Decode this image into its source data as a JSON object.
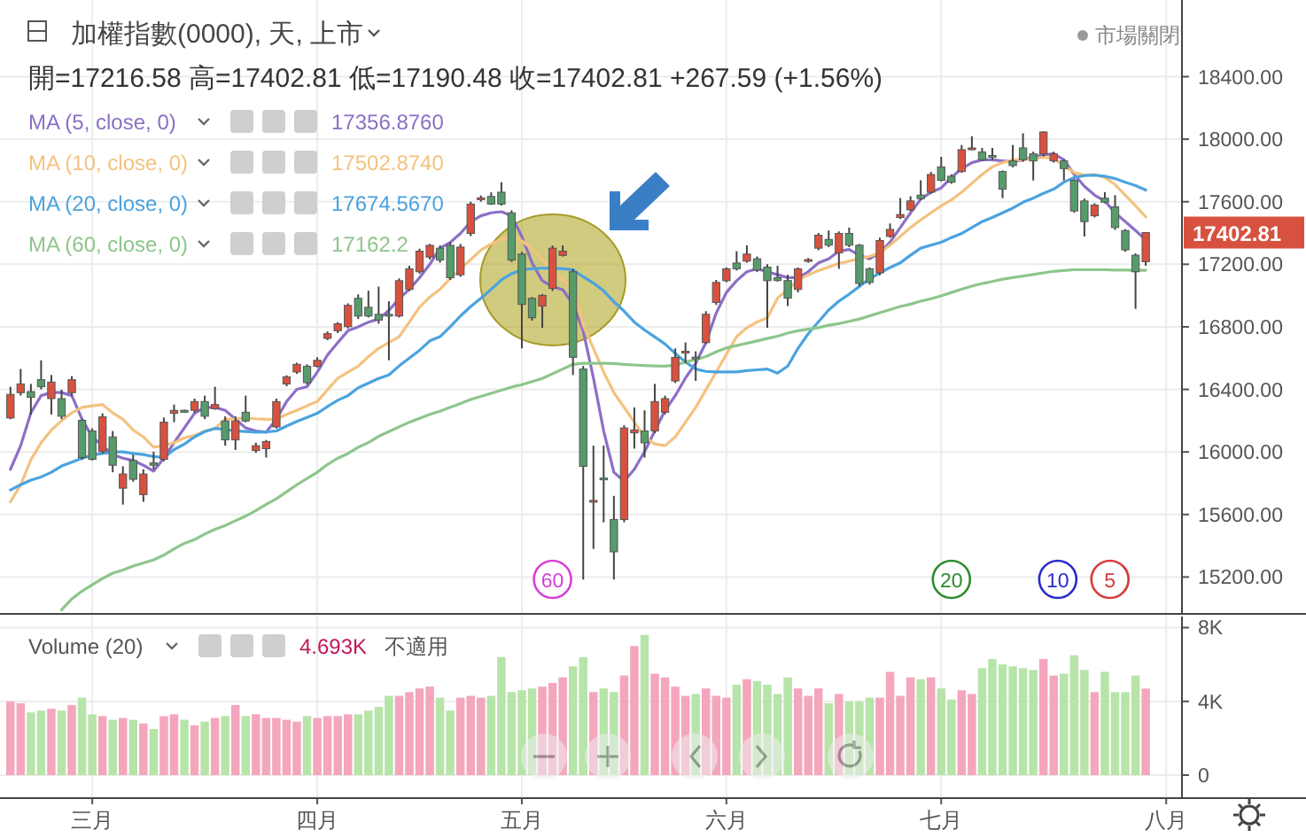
{
  "chart_data": [
    {
      "type": "candlestick",
      "title": "加權指數(0000), 天, 上市",
      "subtitle": "開=17216.58  高=17402.81  低=17190.48  收=17402.81  +267.59 (+1.56%)",
      "categories": [
        null,
        null,
        null,
        null,
        null,
        null,
        null,
        null,
        null,
        null,
        null,
        null,
        null,
        null,
        null,
        null,
        null,
        null,
        null,
        null,
        null,
        null,
        null,
        null,
        null,
        null,
        null,
        null,
        null,
        null,
        null,
        null,
        null,
        null,
        null,
        null,
        null,
        null,
        null,
        null,
        null,
        null,
        null,
        null,
        null,
        null,
        null,
        null,
        null,
        null,
        null,
        null,
        null,
        null,
        null,
        null,
        null,
        null,
        null,
        null,
        null,
        null,
        null,
        null,
        null,
        null,
        null,
        null,
        null,
        null,
        null,
        null,
        null,
        null,
        null,
        null,
        null,
        null,
        null,
        null,
        null,
        null,
        null,
        null,
        null,
        null,
        null,
        null,
        null,
        null,
        null,
        null,
        null,
        null,
        null,
        null,
        null,
        null,
        null,
        null,
        null,
        null,
        null,
        null,
        null,
        null,
        null,
        null,
        null,
        null,
        null,
        null,
        null,
        null
      ],
      "ohlc": [
        [
          16217,
          16417,
          16209,
          16368
        ],
        [
          16379,
          16530,
          16360,
          16435
        ],
        [
          16386,
          16435,
          16239,
          16349
        ],
        [
          16462,
          16586,
          16400,
          16417
        ],
        [
          16341,
          16492,
          16239,
          16447
        ],
        [
          16341,
          16398,
          16210,
          16228
        ],
        [
          16379,
          16485,
          16360,
          16462
        ],
        [
          16202,
          16209,
          15950,
          15964
        ],
        [
          16134,
          16150,
          15945,
          15953
        ],
        [
          16002,
          16247,
          15990,
          16224
        ],
        [
          16096,
          16134,
          15870,
          15915
        ],
        [
          15768,
          15908,
          15663,
          15859
        ],
        [
          15945,
          15983,
          15810,
          15825
        ],
        [
          15727,
          15889,
          15681,
          15859
        ],
        [
          15930,
          16002,
          15889,
          15915
        ],
        [
          15953,
          16220,
          15940,
          16190
        ],
        [
          16247,
          16303,
          16190,
          16266
        ],
        [
          16266,
          16270,
          16250,
          16254
        ],
        [
          16266,
          16341,
          16250,
          16322
        ],
        [
          16322,
          16360,
          16210,
          16228
        ],
        [
          16277,
          16417,
          16270,
          16303
        ],
        [
          16198,
          16228,
          16040,
          16077
        ],
        [
          16077,
          16228,
          16013,
          16198
        ],
        [
          16254,
          16360,
          16190,
          16198
        ],
        [
          16009,
          16059,
          15994,
          16040
        ],
        [
          16021,
          16077,
          15964,
          16066
        ],
        [
          16160,
          16341,
          16150,
          16322
        ],
        [
          16435,
          16490,
          16420,
          16480
        ],
        [
          16511,
          16570,
          16500,
          16560
        ],
        [
          16548,
          16560,
          16430,
          16443
        ],
        [
          16548,
          16605,
          16540,
          16586
        ],
        [
          16726,
          16770,
          16715,
          16756
        ],
        [
          16775,
          16830,
          16760,
          16820
        ],
        [
          16801,
          16950,
          16790,
          16937
        ],
        [
          16982,
          17008,
          16850,
          16869
        ],
        [
          16925,
          17031,
          16860,
          16869
        ],
        [
          16880,
          17057,
          16820,
          16843
        ],
        [
          16880,
          16963,
          16586,
          16869
        ],
        [
          16869,
          17110,
          16860,
          17095
        ],
        [
          17039,
          17190,
          17030,
          17171
        ],
        [
          17152,
          17300,
          17140,
          17284
        ],
        [
          17246,
          17330,
          17230,
          17321
        ],
        [
          17303,
          17320,
          17210,
          17227
        ],
        [
          17321,
          17340,
          17100,
          17114
        ],
        [
          17133,
          17330,
          17120,
          17310
        ],
        [
          17397,
          17600,
          17380,
          17585
        ],
        [
          17613,
          17640,
          17600,
          17625
        ],
        [
          17634,
          17660,
          17580,
          17585
        ],
        [
          17661,
          17725,
          17575,
          17585
        ],
        [
          17529,
          17545,
          17215,
          17227
        ],
        [
          17265,
          17280,
          16662,
          16944
        ],
        [
          16982,
          16990,
          16840,
          16858
        ],
        [
          16933,
          17010,
          16794,
          17001
        ],
        [
          17046,
          17320,
          17030,
          17303
        ],
        [
          17257,
          17321,
          17250,
          17284
        ],
        [
          17152,
          17170,
          16492,
          16605
        ],
        [
          16530,
          16550,
          15184,
          15908
        ],
        [
          15689,
          16040,
          15380,
          15690
        ],
        [
          15833,
          16040,
          15550,
          15832
        ],
        [
          15568,
          15719,
          15184,
          15361
        ],
        [
          15568,
          16170,
          15550,
          16153
        ],
        [
          16122,
          16285,
          16021,
          16141
        ],
        [
          16134,
          16266,
          15964,
          16058
        ],
        [
          16134,
          16435,
          16120,
          16322
        ],
        [
          16254,
          16360,
          16240,
          16341
        ],
        [
          16454,
          16662,
          16440,
          16605
        ],
        [
          16643,
          16700,
          16567,
          16644
        ],
        [
          16606,
          16643,
          16454,
          16605
        ],
        [
          16699,
          16900,
          16690,
          16880
        ],
        [
          16956,
          17100,
          16940,
          17084
        ],
        [
          17095,
          17180,
          17085,
          17171
        ],
        [
          17208,
          17284,
          17160,
          17171
        ],
        [
          17220,
          17321,
          17210,
          17265
        ],
        [
          17235,
          17250,
          17150,
          17163
        ],
        [
          17182,
          17200,
          16794,
          17095
        ],
        [
          17114,
          17190,
          17090,
          17096
        ],
        [
          17096,
          17133,
          16933,
          16983
        ],
        [
          17039,
          17180,
          17020,
          17171
        ],
        [
          17227,
          17240,
          17210,
          17230
        ],
        [
          17303,
          17400,
          17290,
          17386
        ],
        [
          17359,
          17416,
          17310,
          17322
        ],
        [
          17273,
          17410,
          17171,
          17397
        ],
        [
          17397,
          17435,
          17310,
          17322
        ],
        [
          17322,
          17330,
          17060,
          17077
        ],
        [
          17171,
          17180,
          17070,
          17084
        ],
        [
          17145,
          17370,
          17130,
          17352
        ],
        [
          17378,
          17461,
          17370,
          17423
        ],
        [
          17499,
          17623,
          17490,
          17518
        ],
        [
          17548,
          17635,
          17540,
          17605
        ],
        [
          17642,
          17737,
          17610,
          17620
        ],
        [
          17661,
          17790,
          17650,
          17774
        ],
        [
          17823,
          17887,
          17730,
          17737
        ],
        [
          17763,
          17775,
          17715,
          17725
        ],
        [
          17793,
          17963,
          17785,
          17933
        ],
        [
          17943,
          18019,
          17930,
          17944
        ],
        [
          17918,
          17944,
          17860,
          17868
        ],
        [
          17896,
          17944,
          17868,
          17895
        ],
        [
          17793,
          17800,
          17623,
          17680
        ],
        [
          17861,
          17963,
          17820,
          17831
        ],
        [
          17944,
          18038,
          17855,
          17868
        ],
        [
          17906,
          17920,
          17736,
          17861
        ],
        [
          17906,
          18050,
          17890,
          18046
        ],
        [
          17861,
          17920,
          17850,
          17906
        ],
        [
          17861,
          17870,
          17736,
          17812
        ],
        [
          17737,
          17745,
          17530,
          17541
        ],
        [
          17605,
          17620,
          17378,
          17473
        ],
        [
          17510,
          17590,
          17500,
          17578
        ],
        [
          17623,
          17661,
          17590,
          17597
        ],
        [
          17567,
          17642,
          17420,
          17435
        ],
        [
          17416,
          17425,
          17280,
          17292
        ],
        [
          17258,
          17270,
          16915,
          17152
        ],
        [
          17216.58,
          17402.81,
          17190.48,
          17402.81
        ],
        null,
        null
      ],
      "colors": [
        "#d8513f",
        "#d8513f",
        "#569c6b",
        "#569c6b",
        "#d8513f",
        "#569c6b",
        "#d8513f",
        "#569c6b",
        "#569c6b",
        "#d8513f",
        "#569c6b",
        "#d8513f",
        "#569c6b",
        "#d8513f",
        "#569c6b",
        "#d8513f",
        "#d8513f",
        "#569c6b",
        "#d8513f",
        "#569c6b",
        "#d8513f",
        "#569c6b",
        "#d8513f",
        "#569c6b",
        "#d8513f",
        "#d8513f",
        "#d8513f",
        "#d8513f",
        "#d8513f",
        "#569c6b",
        "#d8513f",
        "#d8513f",
        "#d8513f",
        "#d8513f",
        "#569c6b",
        "#569c6b",
        "#569c6b",
        "#569c6b",
        "#d8513f",
        "#d8513f",
        "#d8513f",
        "#d8513f",
        "#569c6b",
        "#569c6b",
        "#d8513f",
        "#d8513f",
        "#d8513f",
        "#569c6b",
        "#569c6b",
        "#569c6b",
        "#569c6b",
        "#569c6b",
        "#d8513f",
        "#d8513f",
        "#d8513f",
        "#569c6b",
        "#569c6b",
        "#d8513f",
        "#569c6b",
        "#569c6b",
        "#d8513f",
        "#d8513f",
        "#569c6b",
        "#d8513f",
        "#d8513f",
        "#d8513f",
        "#d8513f",
        "#569c6b",
        "#d8513f",
        "#d8513f",
        "#d8513f",
        "#569c6b",
        "#d8513f",
        "#569c6b",
        "#569c6b",
        "#569c6b",
        "#569c6b",
        "#d8513f",
        "#d8513f",
        "#d8513f",
        "#569c6b",
        "#d8513f",
        "#569c6b",
        "#569c6b",
        "#569c6b",
        "#d8513f",
        "#d8513f",
        "#d8513f",
        "#d8513f",
        "#569c6b",
        "#d8513f",
        "#569c6b",
        "#569c6b",
        "#d8513f",
        "#d8513f",
        "#569c6b",
        "#569c6b",
        "#569c6b",
        "#569c6b",
        "#569c6b",
        "#569c6b",
        "#d8513f",
        "#d8513f",
        "#569c6b",
        "#569c6b",
        "#569c6b",
        "#d8513f",
        "#569c6b",
        "#569c6b",
        "#569c6b",
        "#569c6b",
        "#d8513f",
        null,
        null
      ],
      "series": [
        {
          "name": "MA (5, close, 0)",
          "type": "line",
          "color": "#8c6fc6",
          "values": [
            15889,
            16040,
            16250,
            16360,
            16380,
            16380,
            16360,
            16210,
            16096,
            16040,
            15983,
            15960,
            15945,
            15915,
            15877,
            15960,
            16059,
            16153,
            16247,
            16285,
            16285,
            16266,
            16210,
            16153,
            16134,
            16126,
            16209,
            16322,
            16400,
            16417,
            16510,
            16620,
            16699,
            16775,
            16800,
            16830,
            16850,
            16905,
            16980,
            17040,
            17114,
            17200,
            17303,
            17340,
            17397,
            17472,
            17510,
            17529,
            17536,
            17510,
            17378,
            17208,
            17095,
            17057,
            17038,
            16944,
            16775,
            16473,
            16134,
            15870,
            15813,
            15889,
            16002,
            16134,
            16266,
            16360,
            16473,
            16567,
            16699,
            16888,
            17020,
            17095,
            17152,
            17171,
            17152,
            17133,
            17115,
            17115,
            17152,
            17209,
            17235,
            17284,
            17295,
            17258,
            17235,
            17273,
            17341,
            17435,
            17529,
            17616,
            17661,
            17688,
            17755,
            17812,
            17850,
            17868,
            17868,
            17861,
            17857,
            17868,
            17887,
            17899,
            17906,
            17868,
            17774,
            17699,
            17642,
            17605,
            17529,
            17473,
            17416,
            17357,
            null,
            null
          ]
        },
        {
          "name": "MA (10, close, 0)",
          "type": "line",
          "color": "#f4c27f",
          "values": [
            15681,
            15790,
            15950,
            16059,
            16140,
            16200,
            16250,
            16285,
            16295,
            16303,
            16250,
            16209,
            16140,
            16096,
            16030,
            16040,
            16059,
            16090,
            16105,
            16134,
            16150,
            16209,
            16212,
            16217,
            16212,
            16209,
            16209,
            16240,
            16266,
            16295,
            16322,
            16398,
            16470,
            16510,
            16548,
            16610,
            16662,
            16700,
            16737,
            16830,
            16926,
            16990,
            17040,
            17110,
            17170,
            17230,
            17290,
            17330,
            17360,
            17380,
            17350,
            17300,
            17230,
            17160,
            17100,
            17057,
            16812,
            16662,
            16511,
            16379,
            16285,
            16190,
            16096,
            16051,
            16040,
            16096,
            16190,
            16285,
            16398,
            16511,
            16624,
            16737,
            16794,
            16831,
            16858,
            16983,
            17039,
            17096,
            17133,
            17160,
            17182,
            17205,
            17220,
            17235,
            17250,
            17273,
            17322,
            17378,
            17435,
            17484,
            17529,
            17574,
            17612,
            17661,
            17718,
            17774,
            17823,
            17850,
            17868,
            17868,
            17876,
            17884,
            17876,
            17831,
            17786,
            17770,
            17774,
            17755,
            17710,
            17642,
            17574,
            17503,
            null,
            null
          ]
        },
        {
          "name": "MA (20, close, 0)",
          "type": "line",
          "color": "#4aa3df",
          "values": [
            15757,
            15790,
            15820,
            15840,
            15870,
            15910,
            15935,
            15960,
            15980,
            15990,
            16000,
            16000,
            15990,
            15983,
            15970,
            15964,
            16015,
            16050,
            16096,
            16130,
            16150,
            16145,
            16134,
            16130,
            16126,
            16128,
            16134,
            16165,
            16195,
            16220,
            16247,
            16290,
            16330,
            16360,
            16410,
            16440,
            16470,
            16492,
            16550,
            16600,
            16650,
            16710,
            16737,
            16800,
            16869,
            16930,
            16982,
            17040,
            17100,
            17140,
            17165,
            17171,
            17175,
            17175,
            17171,
            17165,
            17120,
            17080,
            17030,
            16960,
            16900,
            16830,
            16780,
            16735,
            16690,
            16630,
            16575,
            16530,
            16515,
            16511,
            16511,
            16511,
            16520,
            16525,
            16530,
            16504,
            16549,
            16662,
            16756,
            16832,
            16907,
            16964,
            17009,
            17058,
            17107,
            17145,
            17179,
            17209,
            17258,
            17303,
            17322,
            17341,
            17371,
            17397,
            17435,
            17473,
            17499,
            17529,
            17559,
            17597,
            17623,
            17654,
            17680,
            17725,
            17755,
            17767,
            17770,
            17763,
            17748,
            17725,
            17703,
            17675,
            null,
            null
          ]
        },
        {
          "name": "MA (60, close, 0)",
          "type": "line",
          "color": "#8dc68b",
          "values": [
            null,
            null,
            null,
            null,
            null,
            14990,
            15060,
            15110,
            15150,
            15190,
            15225,
            15245,
            15270,
            15290,
            15310,
            15340,
            15380,
            15415,
            15440,
            15475,
            15505,
            15530,
            15560,
            15590,
            15625,
            15665,
            15700,
            15745,
            15790,
            15830,
            15870,
            15920,
            15960,
            15990,
            16030,
            16060,
            16100,
            16130,
            16160,
            16190,
            16215,
            16240,
            16260,
            16285,
            16310,
            16335,
            16355,
            16375,
            16395,
            16415,
            16430,
            16450,
            16470,
            16500,
            16530,
            16560,
            16567,
            16567,
            16567,
            16565,
            16560,
            16556,
            16552,
            16550,
            16548,
            16555,
            16575,
            16590,
            16610,
            16640,
            16665,
            16680,
            16695,
            16710,
            16725,
            16740,
            16760,
            16775,
            16785,
            16795,
            16810,
            16820,
            16835,
            16850,
            16870,
            16890,
            16910,
            16930,
            16945,
            16964,
            16980,
            16998,
            17020,
            17040,
            17060,
            17077,
            17090,
            17105,
            17115,
            17125,
            17135,
            17145,
            17155,
            17160,
            17165,
            17165,
            17165,
            17165,
            17163,
            17163,
            17162,
            17162,
            null,
            null
          ]
        }
      ],
      "ylim": [
        14970,
        18890
      ],
      "yticks": [
        {
          "value": 15200,
          "label": "15200.00"
        },
        {
          "value": 15600,
          "label": "15600.00"
        },
        {
          "value": 16000,
          "label": "16000.00"
        },
        {
          "value": 16400,
          "label": "16400.00"
        },
        {
          "value": 16800,
          "label": "16800.00"
        },
        {
          "value": 17200,
          "label": "17200.00"
        },
        {
          "value": 17600,
          "label": "17600.00"
        },
        {
          "value": 18000,
          "label": "18000.00"
        },
        {
          "value": 18400,
          "label": "18400.00"
        }
      ],
      "tick_labels": "y",
      "grid": true,
      "legend": "top left",
      "annotations": [
        "市場關閉",
        "17356.8760",
        "17502.8740",
        "17674.5670",
        "17162.2",
        "17402.81",
        "60",
        "20",
        "10",
        "5"
      ]
    },
    {
      "type": "bar",
      "title": "Volume (20)",
      "categories": [
        null,
        null,
        null,
        null,
        null,
        null,
        null,
        null,
        "三月",
        null,
        null,
        null,
        null,
        null,
        null,
        null,
        null,
        null,
        null,
        null,
        null,
        null,
        null,
        null,
        null,
        null,
        null,
        null,
        null,
        null,
        "四月",
        null,
        null,
        null,
        null,
        null,
        null,
        null,
        null,
        null,
        null,
        null,
        null,
        null,
        null,
        null,
        null,
        null,
        null,
        null,
        "五月",
        null,
        null,
        null,
        null,
        null,
        null,
        null,
        null,
        null,
        null,
        null,
        null,
        null,
        null,
        null,
        null,
        null,
        null,
        null,
        "六月",
        null,
        null,
        null,
        null,
        null,
        null,
        null,
        null,
        null,
        null,
        null,
        null,
        null,
        null,
        null,
        null,
        null,
        null,
        null,
        null,
        "七月",
        null,
        null,
        null,
        null,
        null,
        null,
        null,
        null,
        null,
        null,
        null,
        null,
        null,
        null,
        null,
        null,
        null,
        null,
        null,
        null,
        null,
        "八月"
      ],
      "values": [
        4.0,
        3.9,
        3.4,
        3.5,
        3.6,
        3.5,
        3.8,
        4.2,
        3.3,
        3.2,
        3.0,
        3.1,
        3.0,
        2.8,
        2.5,
        3.2,
        3.3,
        3.0,
        2.7,
        2.9,
        3.1,
        3.2,
        3.8,
        3.2,
        3.3,
        3.1,
        3.1,
        3.0,
        2.9,
        3.2,
        3.1,
        3.2,
        3.2,
        3.3,
        3.3,
        3.5,
        3.7,
        4.3,
        4.3,
        4.5,
        4.7,
        4.8,
        4.2,
        3.5,
        4.2,
        4.3,
        4.2,
        4.3,
        6.4,
        4.5,
        4.6,
        4.7,
        4.8,
        5.0,
        5.3,
        5.9,
        6.4,
        4.5,
        4.7,
        4.5,
        5.4,
        7.0,
        7.6,
        5.5,
        5.3,
        4.8,
        4.3,
        4.4,
        4.7,
        4.3,
        4.2,
        4.9,
        5.2,
        5.1,
        4.9,
        4.4,
        5.3,
        4.7,
        4.3,
        4.7,
        3.9,
        4.4,
        4.0,
        4.0,
        4.2,
        4.2,
        5.6,
        4.3,
        5.3,
        5.2,
        5.3,
        4.7,
        4.1,
        4.6,
        4.4,
        5.8,
        6.3,
        6.0,
        5.9,
        5.8,
        5.7,
        6.3,
        5.4,
        5.5,
        6.5,
        5.7,
        4.5,
        5.6,
        4.5,
        4.5,
        5.4,
        4.693,
        null,
        null
      ],
      "colors": [
        "#f4a6bc",
        "#f4a6bc",
        "#b7e4a9",
        "#b7e4a9",
        "#f4a6bc",
        "#b7e4a9",
        "#f4a6bc",
        "#b7e4a9",
        "#b7e4a9",
        "#f4a6bc",
        "#b7e4a9",
        "#f4a6bc",
        "#b7e4a9",
        "#f4a6bc",
        "#b7e4a9",
        "#f4a6bc",
        "#f4a6bc",
        "#b7e4a9",
        "#f4a6bc",
        "#b7e4a9",
        "#f4a6bc",
        "#b7e4a9",
        "#f4a6bc",
        "#b7e4a9",
        "#f4a6bc",
        "#f4a6bc",
        "#f4a6bc",
        "#f4a6bc",
        "#f4a6bc",
        "#b7e4a9",
        "#f4a6bc",
        "#f4a6bc",
        "#f4a6bc",
        "#f4a6bc",
        "#b7e4a9",
        "#b7e4a9",
        "#b7e4a9",
        "#b7e4a9",
        "#f4a6bc",
        "#f4a6bc",
        "#f4a6bc",
        "#f4a6bc",
        "#b7e4a9",
        "#b7e4a9",
        "#f4a6bc",
        "#f4a6bc",
        "#f4a6bc",
        "#b7e4a9",
        "#b7e4a9",
        "#b7e4a9",
        "#b7e4a9",
        "#b7e4a9",
        "#f4a6bc",
        "#f4a6bc",
        "#f4a6bc",
        "#b7e4a9",
        "#b7e4a9",
        "#f4a6bc",
        "#b7e4a9",
        "#b7e4a9",
        "#f4a6bc",
        "#f4a6bc",
        "#b7e4a9",
        "#f4a6bc",
        "#f4a6bc",
        "#f4a6bc",
        "#f4a6bc",
        "#b7e4a9",
        "#f4a6bc",
        "#f4a6bc",
        "#f4a6bc",
        "#b7e4a9",
        "#f4a6bc",
        "#b7e4a9",
        "#b7e4a9",
        "#b7e4a9",
        "#b7e4a9",
        "#f4a6bc",
        "#f4a6bc",
        "#f4a6bc",
        "#b7e4a9",
        "#f4a6bc",
        "#b7e4a9",
        "#b7e4a9",
        "#b7e4a9",
        "#f4a6bc",
        "#f4a6bc",
        "#f4a6bc",
        "#f4a6bc",
        "#b7e4a9",
        "#f4a6bc",
        "#b7e4a9",
        "#b7e4a9",
        "#f4a6bc",
        "#f4a6bc",
        "#b7e4a9",
        "#b7e4a9",
        "#b7e4a9",
        "#b7e4a9",
        "#b7e4a9",
        "#b7e4a9",
        "#f4a6bc",
        "#f4a6bc",
        "#b7e4a9",
        "#b7e4a9",
        "#b7e4a9",
        "#f4a6bc",
        "#b7e4a9",
        "#b7e4a9",
        "#b7e4a9",
        "#b7e4a9",
        "#f4a6bc",
        null,
        null
      ],
      "ylim": [
        -1.2,
        8.6
      ],
      "yticks": [
        0,
        {
          "value": 4,
          "label": "4K"
        },
        {
          "value": 8,
          "label": "8K"
        }
      ],
      "grid": true,
      "annotations": [
        "4.693K",
        "不適用"
      ]
    }
  ]
}
